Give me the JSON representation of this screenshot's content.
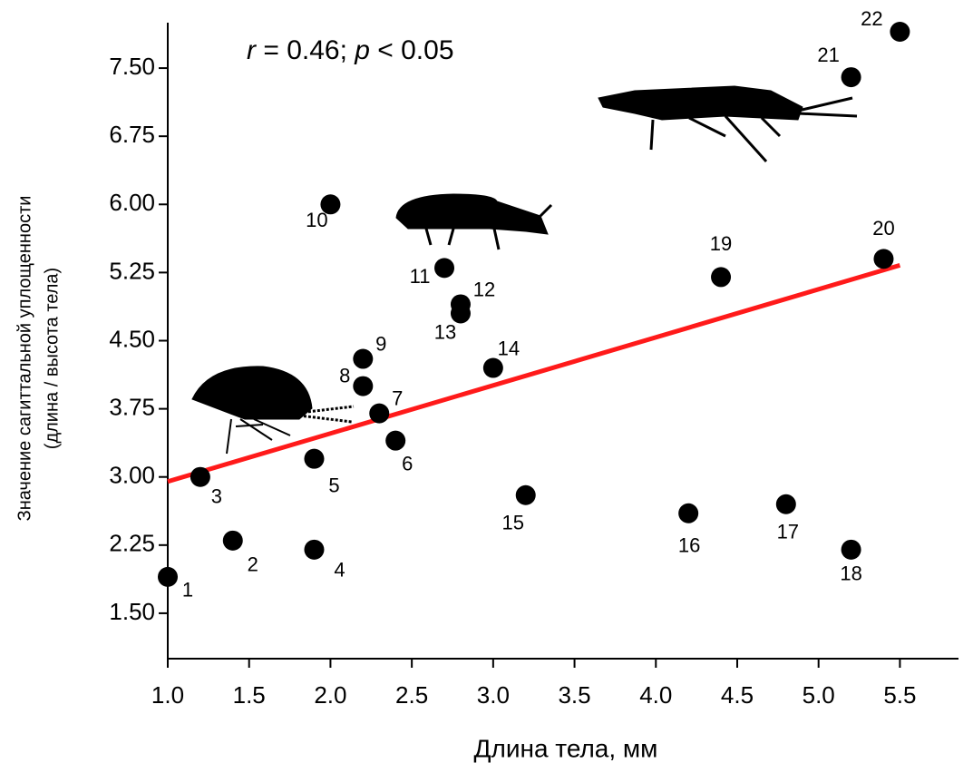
{
  "chart_data": {
    "type": "scatter",
    "annotation": [
      "r",
      " = 0.46; ",
      "p",
      " < 0.05"
    ],
    "x_label": "Длина тела, мм",
    "y_label": [
      "Значение сагиттальной уплощенности",
      "(длина / высота тела)"
    ],
    "x": [
      1.0,
      1.4,
      1.2,
      1.9,
      1.9,
      2.4,
      2.3,
      2.2,
      2.2,
      2.0,
      2.7,
      2.8,
      2.8,
      3.0,
      3.2,
      4.2,
      4.8,
      5.2,
      4.4,
      5.4,
      5.2,
      5.5
    ],
    "values": [
      1.9,
      2.3,
      3.0,
      2.2,
      3.2,
      3.4,
      3.7,
      4.0,
      4.3,
      6.0,
      5.3,
      4.9,
      4.8,
      4.2,
      2.8,
      2.6,
      2.7,
      2.2,
      5.2,
      5.4,
      7.4,
      7.9
    ],
    "labels": [
      "1",
      "2",
      "3",
      "4",
      "5",
      "6",
      "7",
      "8",
      "9",
      "10",
      "11",
      "12",
      "13",
      "14",
      "15",
      "16",
      "17",
      "18",
      "19",
      "20",
      "21",
      "22"
    ],
    "color": "#000000",
    "trendline": {
      "x": [
        1.0,
        5.5
      ],
      "y": [
        2.95,
        5.33
      ],
      "color": "#ff1a1a"
    },
    "xlim": [
      1.0,
      5.86
    ],
    "ylim": [
      1.0,
      8.0
    ],
    "xticks": [
      {
        "value": 1.0,
        "label": "1.0"
      },
      1.5,
      {
        "value": 2.0,
        "label": "2.0"
      },
      2.5,
      {
        "value": 3.0,
        "label": "3.0"
      },
      3.5,
      {
        "value": 4.0,
        "label": "4.0"
      },
      4.5,
      {
        "value": 5.0,
        "label": "5.0"
      },
      5.5
    ],
    "yticks": [
      {
        "value": 1.5,
        "label": "1.50"
      },
      2.25,
      {
        "value": 3.0,
        "label": "3.00"
      },
      3.75,
      {
        "value": 4.5,
        "label": "4.50"
      },
      5.25,
      {
        "value": 6.0,
        "label": "6.00"
      },
      6.75,
      {
        "value": 7.5,
        "label": "7.50"
      }
    ],
    "grid": false
  }
}
